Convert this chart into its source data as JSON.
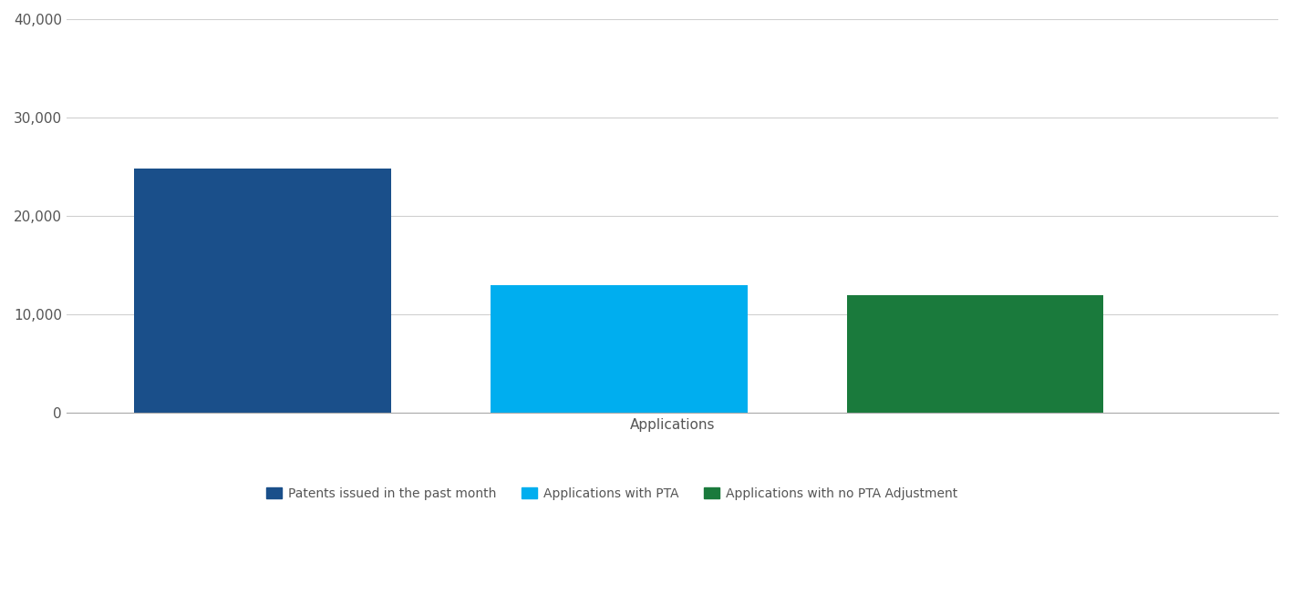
{
  "categories": [
    "Patents issued in the past month",
    "Applications with PTA",
    "Applications with no PTA Adjustment"
  ],
  "values": [
    24800,
    13000,
    12000
  ],
  "bar_colors": [
    "#1a4f8a",
    "#00aeef",
    "#1a7a3c"
  ],
  "xlabel": "Applications",
  "ylabel": "",
  "ylim": [
    0,
    40000
  ],
  "yticks": [
    0,
    10000,
    20000,
    30000,
    40000
  ],
  "background_color": "#ffffff",
  "grid_color": "#d0d0d0",
  "legend_labels": [
    "Patents issued in the past month",
    "Applications with PTA",
    "Applications with no PTA Adjustment"
  ],
  "legend_colors": [
    "#1a4f8a",
    "#00aeef",
    "#1a7a3c"
  ],
  "bar_width": 0.72,
  "x_positions": [
    1,
    2,
    3
  ],
  "axis_color": "#555555",
  "tick_label_color": "#555555",
  "xlabel_fontsize": 11,
  "legend_fontsize": 10,
  "tick_fontsize": 11
}
